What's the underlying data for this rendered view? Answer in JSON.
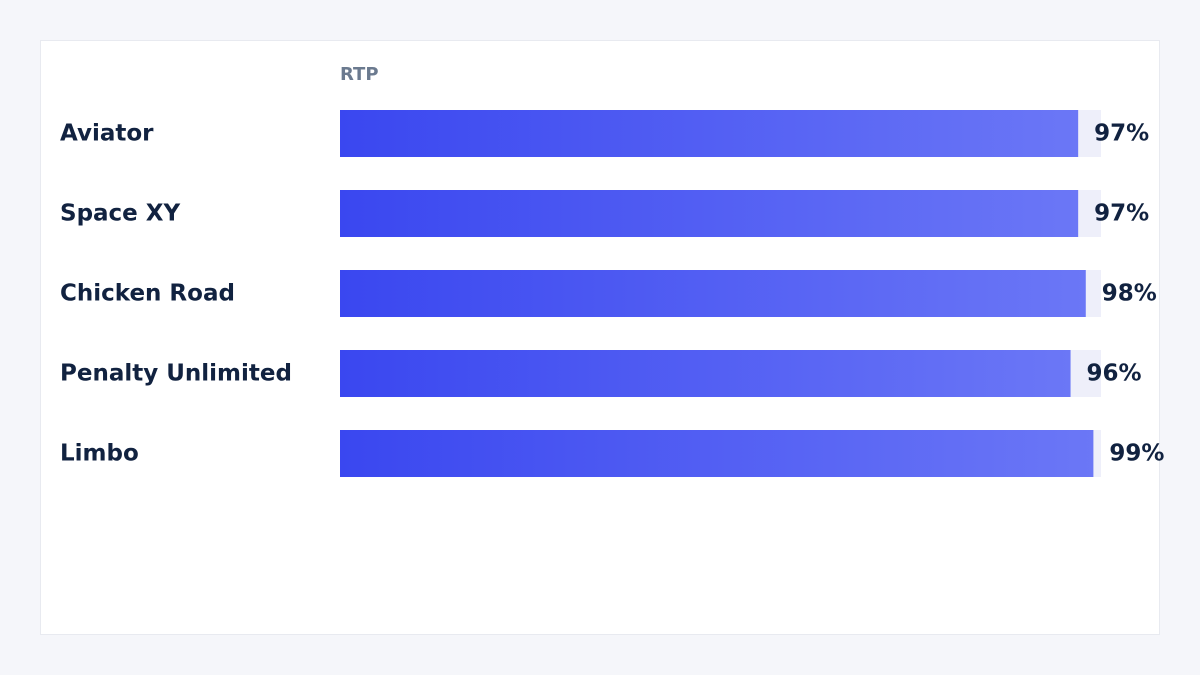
{
  "chart_data": {
    "type": "bar",
    "orientation": "horizontal",
    "column_header": "RTP",
    "categories": [
      "Aviator",
      "Space XY",
      "Chicken Road",
      "Penalty Unlimited",
      "Limbo"
    ],
    "values": [
      97,
      97,
      98,
      96,
      99
    ],
    "value_labels": [
      "97%",
      "97%",
      "98%",
      "96%",
      "99%"
    ],
    "unit": "%",
    "xlim": [
      0,
      100
    ],
    "grid": false,
    "legend": "none"
  },
  "colors": {
    "bar_start": "#3a47f0",
    "bar_end": "#6b77f6",
    "track": "#eeeffa",
    "text": "#112240",
    "header": "#6b7a8f",
    "card": "#ffffff",
    "background": "#f5f6fa"
  }
}
